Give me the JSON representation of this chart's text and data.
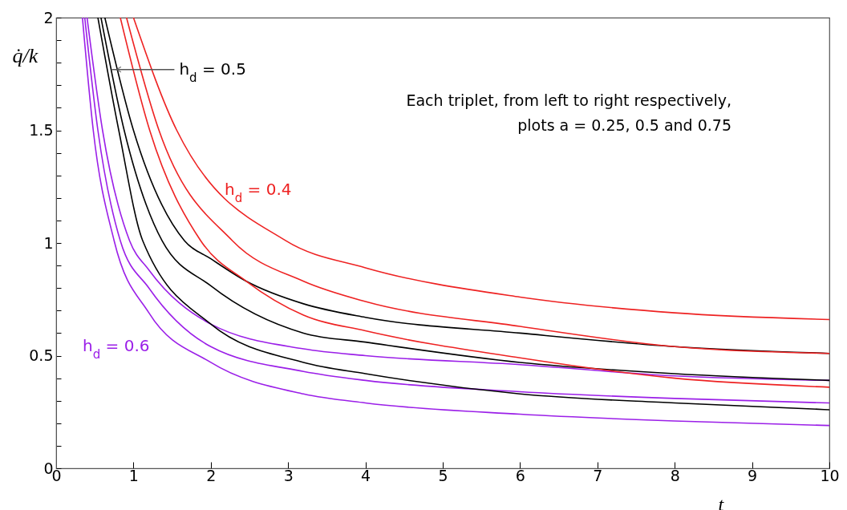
{
  "chart_data": {
    "type": "line",
    "xlabel": "t",
    "ylabel": "q̇/k",
    "xlim": [
      0,
      10
    ],
    "ylim": [
      0,
      2
    ],
    "xticks": [
      0,
      1,
      2,
      3,
      4,
      5,
      6,
      7,
      8,
      9,
      10
    ],
    "yticks": [
      0,
      {
        "value": 0.1,
        "label": null
      },
      {
        "value": 0.2,
        "label": null
      },
      {
        "value": 0.3,
        "label": null
      },
      {
        "value": 0.4,
        "label": null
      },
      0.5,
      {
        "value": 0.6,
        "label": null
      },
      {
        "value": 0.7,
        "label": null
      },
      {
        "value": 0.8,
        "label": null
      },
      {
        "value": 0.9,
        "label": null
      },
      1,
      {
        "value": 1.1,
        "label": null
      },
      {
        "value": 1.2,
        "label": null
      },
      {
        "value": 1.3,
        "label": null
      },
      {
        "value": 1.4,
        "label": null
      },
      1.5,
      {
        "value": 1.6,
        "label": null
      },
      {
        "value": 1.7,
        "label": null
      },
      {
        "value": 1.8,
        "label": null
      },
      {
        "value": 1.9,
        "label": null
      },
      2
    ],
    "grid": false,
    "series": [
      {
        "color": "#9b1fe8",
        "x": [
          0.34,
          0.48,
          0.75,
          1.2,
          2,
          3.2,
          4,
          6,
          8,
          10
        ],
        "values": [
          2,
          1.5,
          1.01,
          0.69,
          0.47,
          0.33,
          0.29,
          0.24,
          0.21,
          0.19
        ]
      },
      {
        "color": "#9b1fe8",
        "x": [
          0.37,
          0.54,
          0.83,
          1.2,
          2,
          3.2,
          4,
          6,
          8,
          10
        ],
        "values": [
          2,
          1.5,
          1.01,
          0.8,
          0.54,
          0.43,
          0.39,
          0.34,
          0.31,
          0.29
        ]
      },
      {
        "color": "#9b1fe8",
        "x": [
          0.4,
          0.6,
          0.95,
          1.2,
          2,
          3.2,
          4,
          6,
          8,
          10
        ],
        "values": [
          2,
          1.5,
          1.01,
          0.88,
          0.64,
          0.53,
          0.5,
          0.46,
          0.41,
          0.39
        ]
      },
      {
        "color": "#000000",
        "x": [
          0.54,
          0.81,
          1.12,
          2,
          3.2,
          4,
          6,
          8,
          10
        ],
        "values": [
          2,
          1.5,
          1.01,
          0.64,
          0.47,
          0.42,
          0.33,
          0.29,
          0.26
        ]
      },
      {
        "color": "#000000",
        "x": [
          0.58,
          0.88,
          1.37,
          2,
          3.2,
          4,
          6,
          8,
          10
        ],
        "values": [
          2,
          1.5,
          1.01,
          0.81,
          0.6,
          0.56,
          0.47,
          0.42,
          0.39
        ]
      },
      {
        "color": "#000000",
        "x": [
          0.63,
          1.0,
          1.66,
          2,
          2.46,
          3.2,
          4,
          6,
          8,
          10
        ],
        "values": [
          2,
          1.5,
          1.01,
          0.93,
          0.83,
          0.73,
          0.67,
          0.6,
          0.54,
          0.51
        ]
      },
      {
        "color": "#ee2222",
        "x": [
          0.83,
          1.21,
          1.87,
          2.46,
          3.2,
          4,
          6,
          8,
          10
        ],
        "values": [
          2,
          1.5,
          1.01,
          0.83,
          0.68,
          0.61,
          0.49,
          0.4,
          0.36
        ]
      },
      {
        "color": "#ee2222",
        "x": [
          0.91,
          1.33,
          2.28,
          3.2,
          4,
          6,
          8,
          10
        ],
        "values": [
          2,
          1.5,
          1.01,
          0.83,
          0.74,
          0.63,
          0.54,
          0.51
        ]
      },
      {
        "color": "#ee2222",
        "x": [
          1.0,
          1.56,
          2.97,
          4,
          6,
          8,
          10
        ],
        "values": [
          2,
          1.5,
          1.01,
          0.89,
          0.76,
          0.69,
          0.66
        ]
      }
    ],
    "annotations": [
      {
        "text": "h$_{d}$ = 0.5",
        "x": 0.72,
        "y": 1.77
      },
      "h$_{d}$ = 0.4",
      "h$_{d}$ = 0.6",
      "Each triplet,  from left to right respectively,",
      "plots   a = 0.25,  0.5  and   0.75"
    ]
  }
}
